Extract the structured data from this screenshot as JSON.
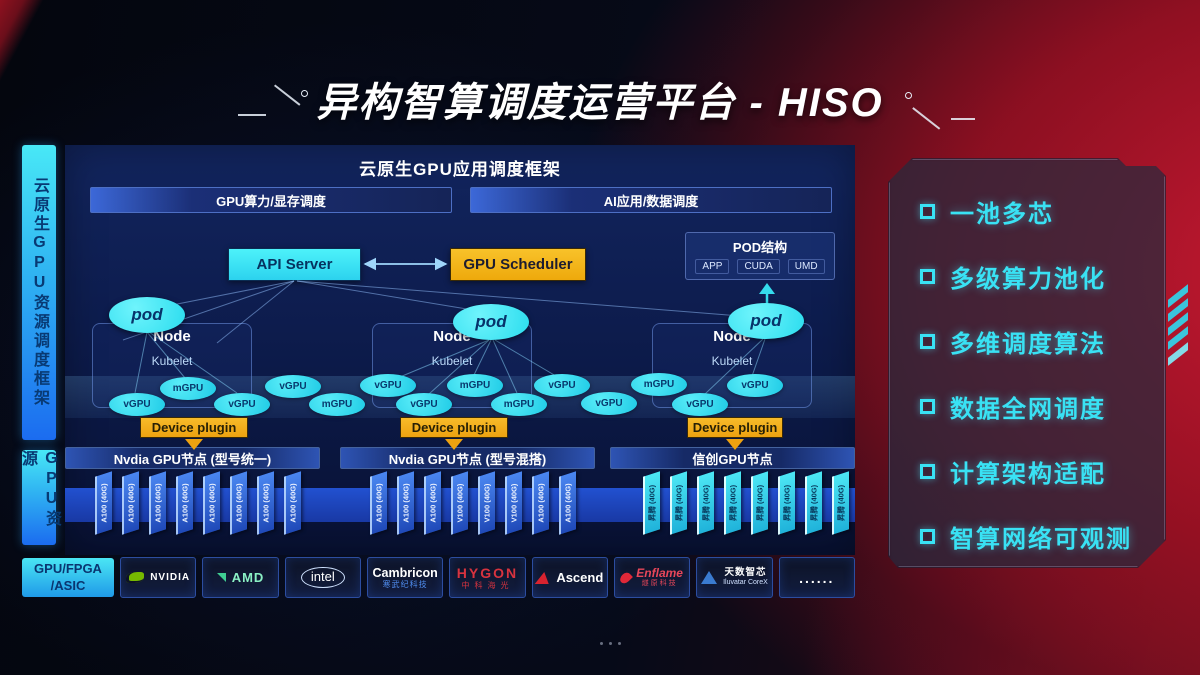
{
  "title": "异构智算调度运营平台 - HISO",
  "left_rail": {
    "framework_label": "云原生GPU资源调度框架",
    "resource_label": "GPU资源",
    "hardware_line1": "GPU/FPGA",
    "hardware_line2": "/ASIC"
  },
  "app_layer": {
    "title": "云原生GPU应用调度框架",
    "left_bar": "GPU算力/显存调度",
    "right_bar": "AI应用/数据调度"
  },
  "control": {
    "api_server": "API Server",
    "gpu_scheduler": "GPU Scheduler"
  },
  "pod_struct": {
    "title": "POD结构",
    "items": [
      "APP",
      "CUDA",
      "UMD"
    ]
  },
  "nodes": [
    {
      "pod": "pod",
      "name": "Node",
      "agent": "Kubelet",
      "plugin": "Device plugin"
    },
    {
      "pod": "pod",
      "name": "Node",
      "agent": "Kubelet",
      "plugin": "Device plugin"
    },
    {
      "pod": "pod",
      "name": "Node",
      "agent": "Kubelet",
      "plugin": "Device plugin"
    }
  ],
  "gpu_ellipses": [
    "vGPU",
    "mGPU",
    "vGPU",
    "vGPU",
    "mGPU",
    "vGPU",
    "vGPU",
    "mGPU",
    "mGPU",
    "vGPU",
    "vGPU",
    "mGPU",
    "vGPU",
    "vGPU"
  ],
  "racks": [
    {
      "title": "Nvdia GPU节点 (型号统一)",
      "style": "blue",
      "cards": [
        "A100 (40G)",
        "A100 (40G)",
        "A100 (40G)",
        "A100 (40G)",
        "A100 (40G)",
        "A100 (40G)",
        "A100 (40G)",
        "A100 (40G)"
      ]
    },
    {
      "title": "Nvdia GPU节点 (型号混搭)",
      "style": "blue",
      "cards": [
        "A100 (40G)",
        "A100 (40G)",
        "A100 (40G)",
        "V100 (40G)",
        "V100 (40G)",
        "V100 (40G)",
        "A100 (40G)",
        "A100 (40G)"
      ]
    },
    {
      "title": "信创GPU节点",
      "style": "cyan",
      "cards": [
        "昇腾 (40G)",
        "昇腾 (40G)",
        "昇腾 (40G)",
        "昇腾 (40G)",
        "昇腾 (40G)",
        "昇腾 (40G)",
        "昇腾 (40G)",
        "昇腾 (40G)"
      ]
    }
  ],
  "vendors": [
    {
      "name": "NVIDIA"
    },
    {
      "name": "AMD"
    },
    {
      "name": "intel"
    },
    {
      "name": "Cambricon",
      "sub": "寒武纪科技"
    },
    {
      "name": "HYGON",
      "sub": "中科海光"
    },
    {
      "name": "Ascend"
    },
    {
      "name": "Enflame",
      "sub": "燧原科技"
    },
    {
      "name": "天数智芯",
      "sub": "Iluvatar CoreX"
    },
    {
      "name": "......"
    }
  ],
  "features": [
    "一池多芯",
    "多级算力池化",
    "多维调度算法",
    "数据全网调度",
    "计算架构适配",
    "智算网络可观测"
  ],
  "colors": {
    "accent_cyan": "#3ae1f2",
    "accent_amber": "#f5b015",
    "card_blue": "#2f6fe8",
    "card_cyan": "#3bd9ef",
    "brand_red": "#c41a32",
    "nvidia_green": "#76b900"
  }
}
